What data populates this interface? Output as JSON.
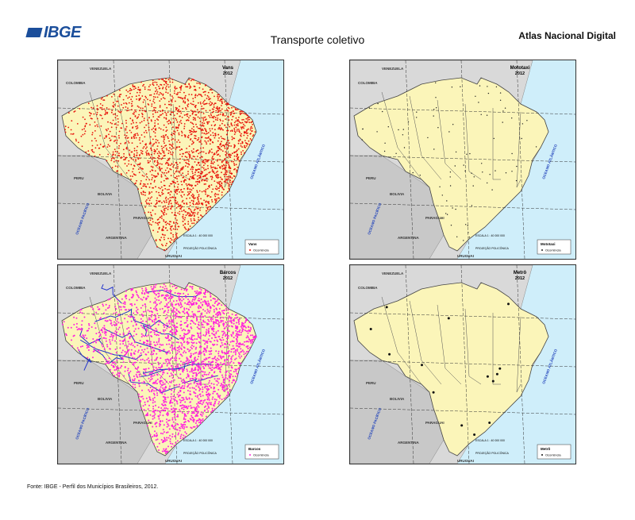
{
  "header": {
    "logo": "IBGE",
    "title": "Transporte coletivo",
    "atlas": "Atlas Nacional Digital"
  },
  "maps": [
    {
      "title": "Vans",
      "year": "2012",
      "legend_title": "Vans",
      "legend_item": "Ocorrência"
    },
    {
      "title": "Mototaxi",
      "year": "2012",
      "legend_title": "Mototaxi",
      "legend_item": "Ocorrência"
    },
    {
      "title": "Barcos",
      "year": "2012",
      "legend_title": "Barcos",
      "legend_item": "Ocorrência"
    },
    {
      "title": "Metrô",
      "year": "2012",
      "legend_title": "Metrô",
      "legend_item": "Ocorrência"
    }
  ],
  "map_labels": [
    "VENEZUELA",
    "COLOMBIA",
    "PERU",
    "BOLIVIA",
    "PARAGUAI",
    "ARGENTINA",
    "URUGUAI",
    "OCEANO PACÍFICO",
    "OCEANO ATLÂNTICO"
  ],
  "scale": "ESCALA 1 : 40 000 000",
  "projection": "PROJEÇÃO POLICÔNICA",
  "source": "Fonte: IBGE - Perfil dos Municípios Brasileiros, 2012."
}
